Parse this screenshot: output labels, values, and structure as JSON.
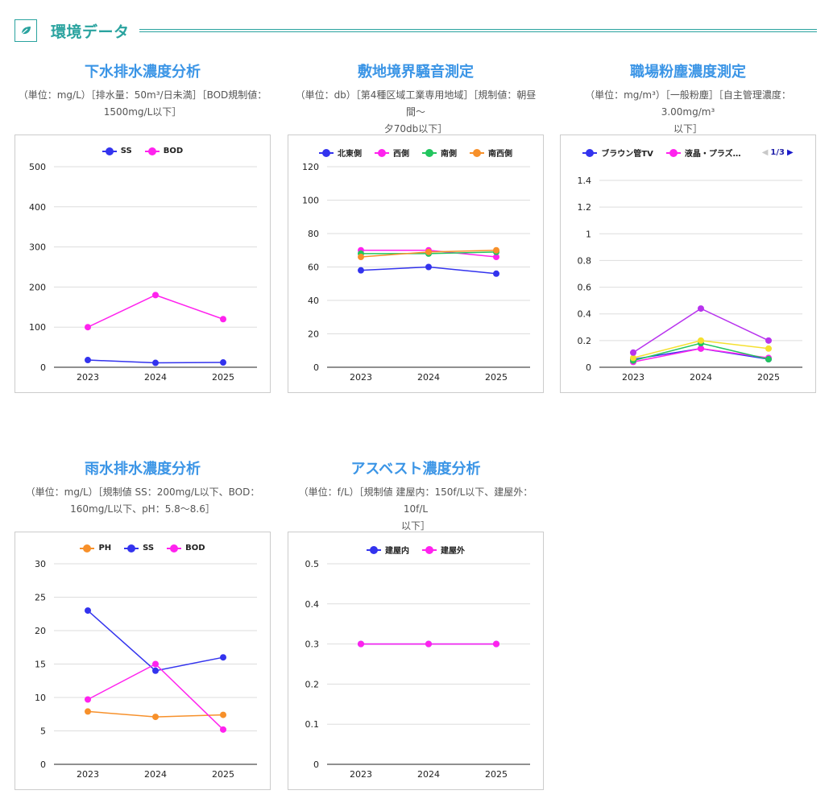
{
  "section": {
    "title": "環境データ",
    "icon": "leaf-icon",
    "accent_color": "#2aa39f"
  },
  "cards": [
    {
      "title": "下水排水濃度分析",
      "subtitle_line1": "（単位：mg/L）［排水量：50m³/日未満］［BOD規制値：",
      "subtitle_line2": "1500mg/L以下］"
    },
    {
      "title": "敷地境界騒音測定",
      "subtitle_line1": "（単位：db）［第4種区域工業専用地域］［規制値：朝昼間～",
      "subtitle_line2": "夕70db以下］"
    },
    {
      "title": "職場粉塵濃度測定",
      "subtitle_line1": "（単位：mg/m³）［一般粉塵］［自主管理濃度：3.00mg/m³",
      "subtitle_line2": "以下］"
    },
    {
      "title": "雨水排水濃度分析",
      "subtitle_line1": "（単位：mg/L）［規制値 SS：200mg/L以下、BOD：",
      "subtitle_line2": "160mg/L以下、pH：5.8～8.6］"
    },
    {
      "title": "アスベスト濃度分析",
      "subtitle_line1": "（単位：f/L）［規制値 建屋内：150f/L以下、建屋外：10f/L",
      "subtitle_line2": "以下］"
    }
  ],
  "legend_pager": {
    "prev": "◀",
    "label": "1/3",
    "next": "▶"
  },
  "chart_data": [
    {
      "type": "line",
      "title": "下水排水濃度分析",
      "categories": [
        "2023",
        "2024",
        "2025"
      ],
      "ylim": [
        0,
        500
      ],
      "yticks": [
        0,
        100,
        200,
        300,
        400,
        500
      ],
      "grid": true,
      "legend_position": "top",
      "series": [
        {
          "name": "SS",
          "color": "#3333ee",
          "values": [
            18,
            11,
            12
          ]
        },
        {
          "name": "BOD",
          "color": "#ff22ee",
          "values": [
            100,
            180,
            120
          ]
        }
      ]
    },
    {
      "type": "line",
      "title": "敷地境界騒音測定",
      "categories": [
        "2023",
        "2024",
        "2025"
      ],
      "ylim": [
        0,
        120
      ],
      "yticks": [
        0,
        20,
        40,
        60,
        80,
        100,
        120
      ],
      "grid": true,
      "legend_position": "top",
      "series": [
        {
          "name": "北東側",
          "color": "#3333ee",
          "values": [
            58,
            60,
            56
          ]
        },
        {
          "name": "西側",
          "color": "#ff22ee",
          "values": [
            70,
            70,
            66
          ]
        },
        {
          "name": "南側",
          "color": "#22c55e",
          "values": [
            68,
            68,
            69
          ]
        },
        {
          "name": "南西側",
          "color": "#f7902a",
          "values": [
            66,
            69,
            70
          ]
        }
      ]
    },
    {
      "type": "line",
      "title": "職場粉塵濃度測定",
      "categories": [
        "2023",
        "2024",
        "2025"
      ],
      "ylim": [
        0,
        1.5
      ],
      "yticks": [
        0,
        0.2,
        0.4,
        0.6,
        0.8,
        1,
        1.2,
        1.4
      ],
      "grid": true,
      "legend_position": "top",
      "legend_visible": [
        "ブラウン管TV",
        "液晶・プラズ…"
      ],
      "series": [
        {
          "name": "ブラウン管TV",
          "color": "#3333ee",
          "values": [
            0.06,
            0.14,
            0.06
          ]
        },
        {
          "name": "液晶・プラズ…",
          "color": "#ff22ee",
          "values": [
            0.04,
            0.14,
            0.07
          ]
        },
        {
          "name": "",
          "color": "#22c55e",
          "values": [
            0.05,
            0.18,
            0.06
          ]
        },
        {
          "name": "",
          "color": "#f5e030",
          "values": [
            0.07,
            0.2,
            0.14
          ]
        },
        {
          "name": "",
          "color": "#b833ee",
          "values": [
            0.11,
            0.44,
            0.2
          ]
        }
      ]
    },
    {
      "type": "line",
      "title": "雨水排水濃度分析",
      "categories": [
        "2023",
        "2024",
        "2025"
      ],
      "ylim": [
        0,
        30
      ],
      "yticks": [
        0,
        5,
        10,
        15,
        20,
        25,
        30
      ],
      "grid": true,
      "legend_position": "top",
      "series": [
        {
          "name": "PH",
          "color": "#f7902a",
          "values": [
            7.9,
            7.1,
            7.4
          ]
        },
        {
          "name": "SS",
          "color": "#3333ee",
          "values": [
            23,
            14,
            16
          ]
        },
        {
          "name": "BOD",
          "color": "#ff22ee",
          "values": [
            9.7,
            15,
            5.2
          ]
        }
      ]
    },
    {
      "type": "line",
      "title": "アスベスト濃度分析",
      "categories": [
        "2023",
        "2024",
        "2025"
      ],
      "ylim": [
        0,
        0.5
      ],
      "yticks": [
        0,
        0.1,
        0.2,
        0.3,
        0.4,
        0.5
      ],
      "grid": true,
      "legend_position": "top",
      "series": [
        {
          "name": "建屋内",
          "color": "#3333ee",
          "values": [
            0.3,
            0.3,
            0.3
          ]
        },
        {
          "name": "建屋外",
          "color": "#ff22ee",
          "values": [
            0.3,
            0.3,
            0.3
          ]
        }
      ]
    }
  ]
}
